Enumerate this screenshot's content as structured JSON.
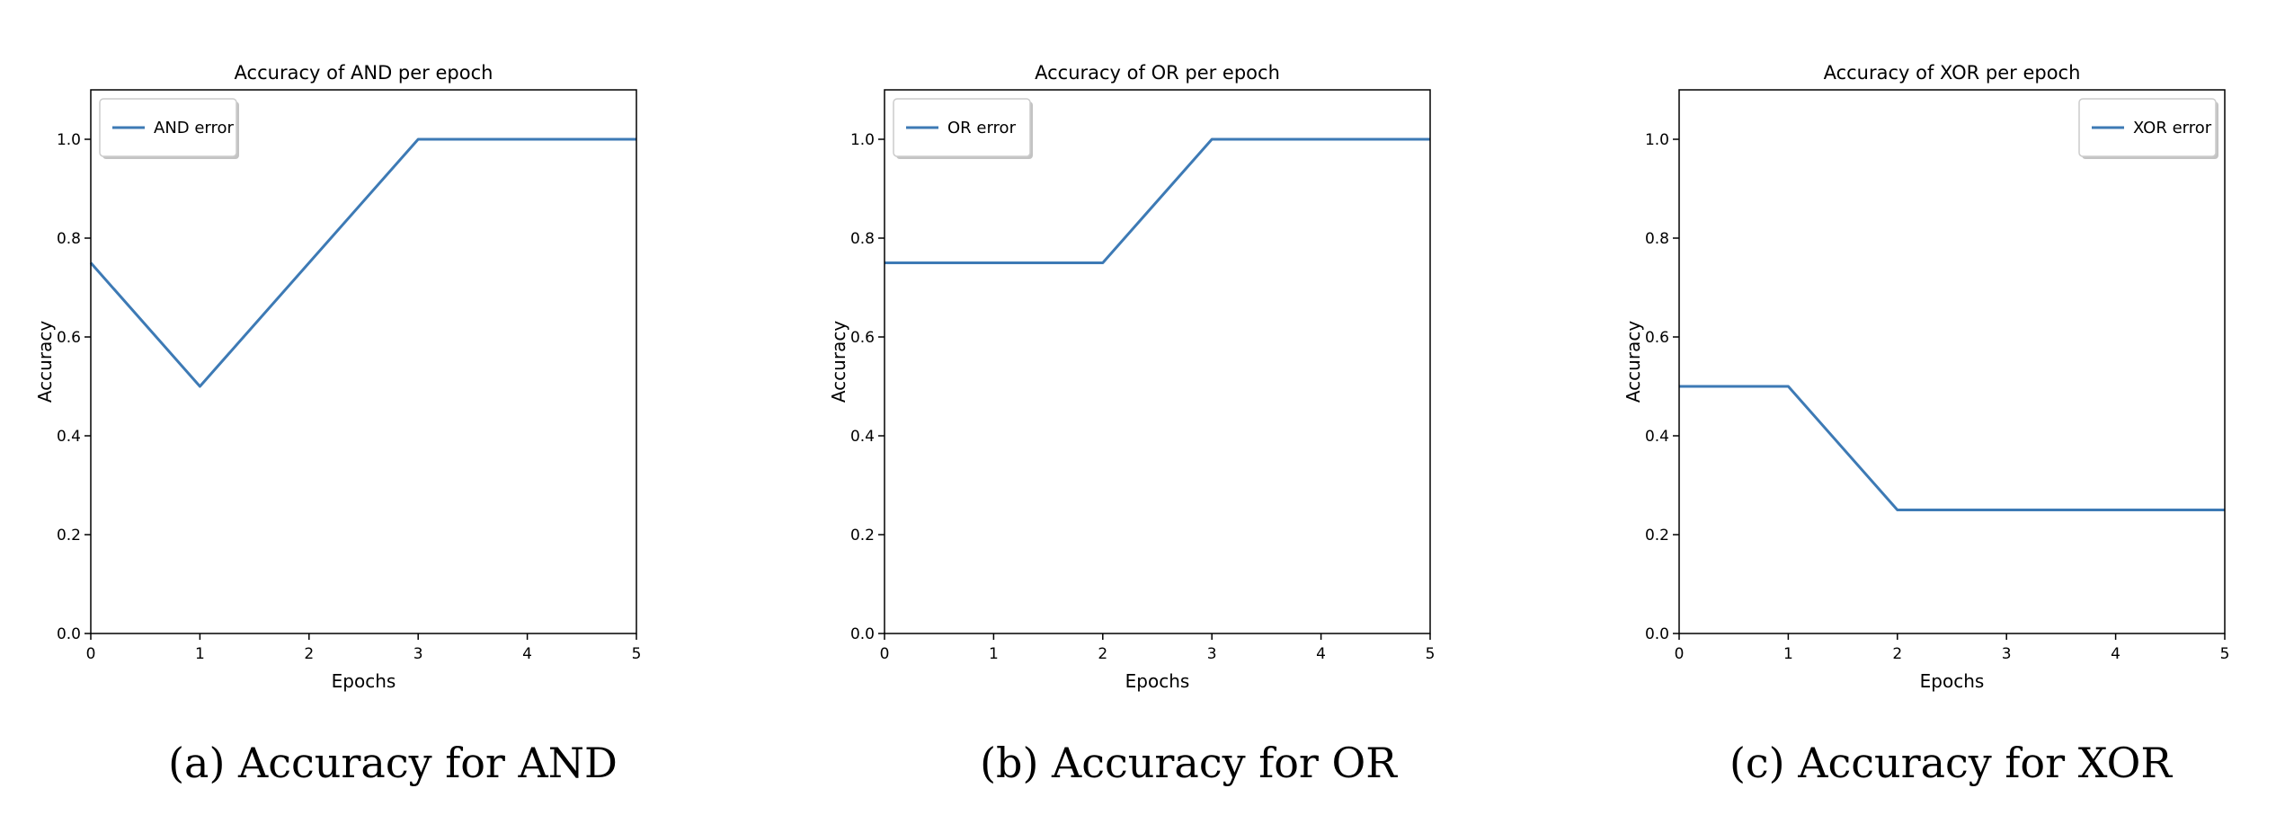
{
  "colors": {
    "series": "#3d7ab5",
    "axis": "#000000",
    "legend_border": "#cccccc",
    "background": "#ffffff"
  },
  "chart_data": [
    {
      "type": "line",
      "title": "Accuracy of AND per epoch",
      "xlabel": "Epochs",
      "ylabel": "Accuracy",
      "xlim": [
        0,
        5
      ],
      "ylim": [
        0,
        1.1
      ],
      "xticks": [
        0,
        1,
        2,
        3,
        4,
        5
      ],
      "yticks": [
        0.0,
        0.2,
        0.4,
        0.6,
        0.8,
        1.0
      ],
      "xtick_labels": [
        "0",
        "1",
        "2",
        "3",
        "4",
        "5"
      ],
      "ytick_labels": [
        "0.0",
        "0.2",
        "0.4",
        "0.6",
        "0.8",
        "1.0"
      ],
      "grid": false,
      "legend_position": "upper left",
      "series": [
        {
          "name": "AND error",
          "x": [
            0,
            1,
            2,
            3,
            4,
            5
          ],
          "y": [
            0.75,
            0.5,
            0.75,
            1.0,
            1.0,
            1.0
          ]
        }
      ],
      "caption": "(a) Accuracy for AND"
    },
    {
      "type": "line",
      "title": "Accuracy of OR per epoch",
      "xlabel": "Epochs",
      "ylabel": "Accuracy",
      "xlim": [
        0,
        5
      ],
      "ylim": [
        0,
        1.1
      ],
      "xticks": [
        0,
        1,
        2,
        3,
        4,
        5
      ],
      "yticks": [
        0.0,
        0.2,
        0.4,
        0.6,
        0.8,
        1.0
      ],
      "xtick_labels": [
        "0",
        "1",
        "2",
        "3",
        "4",
        "5"
      ],
      "ytick_labels": [
        "0.0",
        "0.2",
        "0.4",
        "0.6",
        "0.8",
        "1.0"
      ],
      "grid": false,
      "legend_position": "upper left",
      "series": [
        {
          "name": "OR error",
          "x": [
            0,
            1,
            2,
            3,
            4,
            5
          ],
          "y": [
            0.75,
            0.75,
            0.75,
            1.0,
            1.0,
            1.0
          ]
        }
      ],
      "caption": "(b) Accuracy for OR"
    },
    {
      "type": "line",
      "title": "Accuracy of XOR per epoch",
      "xlabel": "Epochs",
      "ylabel": "Accuracy",
      "xlim": [
        0,
        5
      ],
      "ylim": [
        0,
        1.1
      ],
      "xticks": [
        0,
        1,
        2,
        3,
        4,
        5
      ],
      "yticks": [
        0.0,
        0.2,
        0.4,
        0.6,
        0.8,
        1.0
      ],
      "xtick_labels": [
        "0",
        "1",
        "2",
        "3",
        "4",
        "5"
      ],
      "ytick_labels": [
        "0.0",
        "0.2",
        "0.4",
        "0.6",
        "0.8",
        "1.0"
      ],
      "grid": false,
      "legend_position": "upper right",
      "series": [
        {
          "name": "XOR error",
          "x": [
            0,
            1,
            2,
            3,
            4,
            5
          ],
          "y": [
            0.5,
            0.5,
            0.25,
            0.25,
            0.25,
            0.25
          ]
        }
      ],
      "caption": "(c) Accuracy for XOR"
    }
  ]
}
